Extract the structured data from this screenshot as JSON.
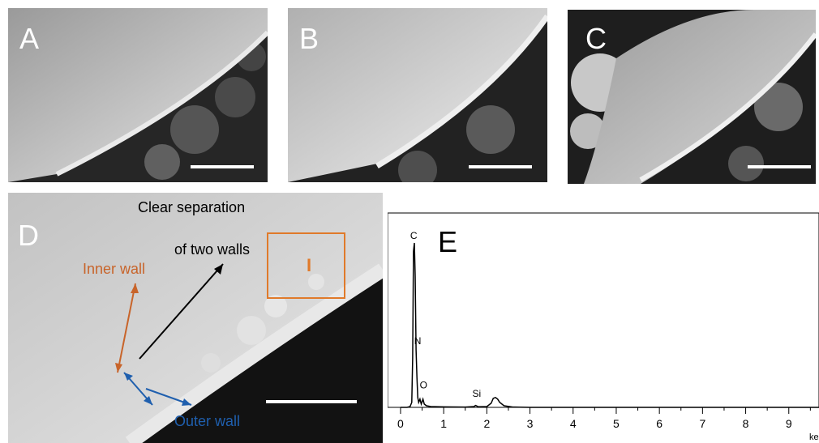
{
  "figure": {
    "panels": [
      {
        "label": "A"
      },
      {
        "label": "B"
      },
      {
        "label": "C"
      },
      {
        "label": "D"
      }
    ],
    "panel_d": {
      "annotation_line1": "Clear separation",
      "annotation_line2": "of two walls",
      "inner_wall_label": "Inner wall",
      "outer_wall_label": "Outer wall",
      "inset_marker": "I",
      "colors": {
        "inner": "#c8642a",
        "outer": "#1f5fae",
        "arrow": "#000000",
        "box": "#e07a2a"
      }
    },
    "panel_e": {
      "label": "E"
    }
  },
  "chart_data": {
    "type": "line",
    "xlabel": "ke",
    "xlim": [
      -0.3,
      9.7
    ],
    "x_ticks": [
      0,
      1,
      2,
      3,
      4,
      5,
      6,
      7,
      8,
      9
    ],
    "x_tick_labels": [
      "0",
      "1",
      "2",
      "3",
      "4",
      "5",
      "6",
      "7",
      "8",
      "9"
    ],
    "series": [
      {
        "x": [
          0.0,
          0.15,
          0.22,
          0.26,
          0.28,
          0.3,
          0.32,
          0.34,
          0.36,
          0.38,
          0.4,
          0.42,
          0.45,
          0.48,
          0.52,
          0.55,
          0.6,
          0.7,
          1.0,
          1.5,
          1.7,
          1.74,
          1.8,
          2.0,
          2.1,
          2.15,
          2.2,
          2.25,
          2.3,
          2.4,
          2.6,
          3.0,
          9.7
        ],
        "y": [
          0,
          0,
          0.5,
          3,
          30,
          95,
          100,
          80,
          35,
          18,
          6,
          3,
          5,
          2,
          5,
          2,
          1,
          0.5,
          0.3,
          0.2,
          0.5,
          1.2,
          0.4,
          0.5,
          2.5,
          5.5,
          6,
          5,
          3,
          1,
          0.2,
          0,
          0
        ]
      }
    ],
    "peak_labels": [
      {
        "text": "C",
        "x": 0.3,
        "y": 100
      },
      {
        "text": "N",
        "x": 0.39,
        "y": 36
      },
      {
        "text": "O",
        "x": 0.52,
        "y": 9
      },
      {
        "text": "Si",
        "x": 1.74,
        "y": 4
      }
    ]
  }
}
